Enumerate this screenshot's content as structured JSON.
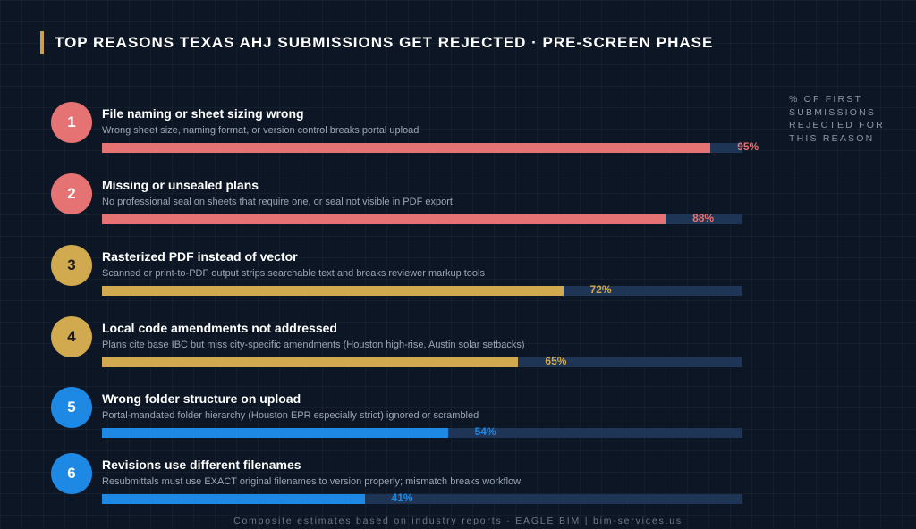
{
  "title": "TOP REASONS TEXAS AHJ SUBMISSIONS GET REJECTED · PRE-SCREEN PHASE",
  "side_note": "% OF FIRST SUBMISSIONS REJECTED FOR THIS REASON",
  "footer": "Composite estimates based on industry reports · EAGLE BIM | bim-services.us",
  "colors": {
    "background": "#0c1624",
    "track": "#1e3556",
    "accent_gold": "#c9a24a",
    "red": "#e57373",
    "gold": "#d1a94e",
    "blue": "#1e88e5"
  },
  "chart_data": {
    "type": "bar",
    "orientation": "horizontal",
    "xlim": [
      0,
      100
    ],
    "unit": "%",
    "grid": false,
    "bars": [
      {
        "rank": "1",
        "label": "File naming or sheet sizing wrong",
        "description": "Wrong sheet size, naming format, or version control breaks portal upload",
        "value": 95,
        "value_label": "95%",
        "color": "#e57373"
      },
      {
        "rank": "2",
        "label": "Missing or unsealed plans",
        "description": "No professional seal on sheets that require one, or seal not visible in PDF export",
        "value": 88,
        "value_label": "88%",
        "color": "#e57373"
      },
      {
        "rank": "3",
        "label": "Rasterized PDF instead of vector",
        "description": "Scanned or print-to-PDF output strips searchable text and breaks reviewer markup tools",
        "value": 72,
        "value_label": "72%",
        "color": "#d1a94e"
      },
      {
        "rank": "4",
        "label": "Local code amendments not addressed",
        "description": "Plans cite base IBC but miss city-specific amendments (Houston high-rise, Austin solar setbacks)",
        "value": 65,
        "value_label": "65%",
        "color": "#d1a94e"
      },
      {
        "rank": "5",
        "label": "Wrong folder structure on upload",
        "description": "Portal-mandated folder hierarchy (Houston EPR especially strict) ignored or scrambled",
        "value": 54,
        "value_label": "54%",
        "color": "#1e88e5"
      },
      {
        "rank": "6",
        "label": "Revisions use different filenames",
        "description": "Resubmittals must use EXACT original filenames to version properly; mismatch breaks workflow",
        "value": 41,
        "value_label": "41%",
        "color": "#1e88e5"
      }
    ]
  }
}
